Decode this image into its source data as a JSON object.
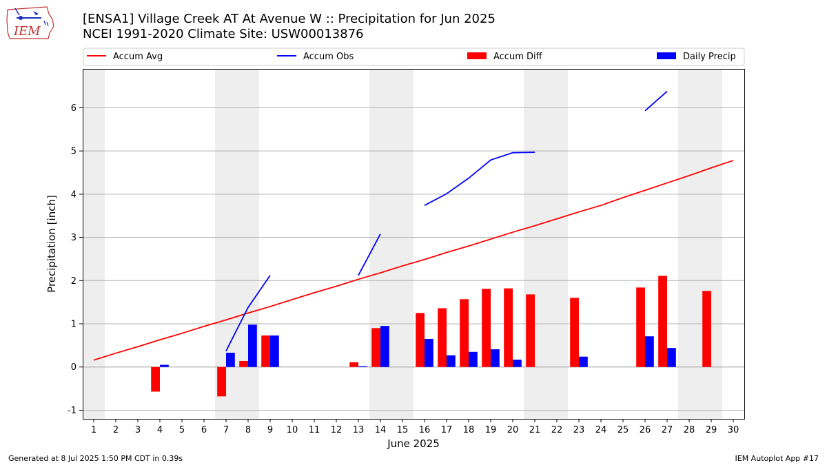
{
  "header": {
    "title": "[ENSA1] Village Creek  AT At Avenue W :: Precipitation for Jun 2025",
    "subtitle": "NCEI 1991-2020 Climate Site: USW00013876",
    "logo_text": "IEM"
  },
  "footer": {
    "left": "Generated at 8 Jul 2025 1:50 PM CDT in 0.39s",
    "right": "IEM Autoplot App #17"
  },
  "colors": {
    "avg": "#ff0000",
    "obs": "#0000ff",
    "diff": "#ff0000",
    "daily": "#0000ff",
    "weekend_band": "#eeeeee",
    "grid": "#b0b0b0"
  },
  "chart_data": {
    "type": "bar",
    "title": "[ENSA1] Village Creek  AT At Avenue W :: Precipitation for Jun 2025",
    "xlabel": "June 2025",
    "ylabel": "Precipitation [inch]",
    "xlim": [
      0.5,
      30.5
    ],
    "ylim": [
      -1.2,
      6.9
    ],
    "yticks": [
      -1,
      0,
      1,
      2,
      3,
      4,
      5,
      6
    ],
    "xticks": [
      "1",
      "2",
      "3",
      "4",
      "5",
      "6",
      "7",
      "8",
      "9",
      "10",
      "11",
      "12",
      "13",
      "14",
      "15",
      "16",
      "17",
      "18",
      "19",
      "20",
      "21",
      "22",
      "23",
      "24",
      "25",
      "26",
      "27",
      "28",
      "29",
      "30"
    ],
    "legend": [
      "Accum Avg",
      "Accum Obs",
      "Accum Diff",
      "Daily Precip"
    ],
    "weekend_bands": [
      [
        0.5,
        1.5
      ],
      [
        6.5,
        8.5
      ],
      [
        13.5,
        15.5
      ],
      [
        20.5,
        22.5
      ],
      [
        27.5,
        29.5
      ]
    ],
    "accum_avg": [
      0.16,
      0.32,
      0.47,
      0.63,
      0.78,
      0.94,
      1.09,
      1.25,
      1.4,
      1.56,
      1.72,
      1.87,
      2.03,
      2.18,
      2.34,
      2.49,
      2.65,
      2.8,
      2.96,
      3.12,
      3.27,
      3.43,
      3.59,
      3.74,
      3.92,
      4.09,
      4.26,
      4.43,
      4.61,
      4.78
    ],
    "accum_obs_segments": [
      {
        "x": [
          7,
          8,
          9
        ],
        "y": [
          0.37,
          1.38,
          2.12
        ]
      },
      {
        "x": [
          13,
          14
        ],
        "y": [
          2.12,
          3.08
        ]
      },
      {
        "x": [
          16,
          17,
          18,
          19,
          20,
          21
        ],
        "y": [
          3.74,
          4.01,
          4.37,
          4.79,
          4.96,
          4.97
        ]
      },
      {
        "x": [
          26,
          27
        ],
        "y": [
          5.93,
          6.38
        ]
      }
    ],
    "accum_diff": [
      {
        "day": 4,
        "value": -0.57
      },
      {
        "day": 7,
        "value": -0.68
      },
      {
        "day": 8,
        "value": 0.14
      },
      {
        "day": 9,
        "value": 0.73
      },
      {
        "day": 13,
        "value": 0.11
      },
      {
        "day": 14,
        "value": 0.9
      },
      {
        "day": 16,
        "value": 1.25
      },
      {
        "day": 17,
        "value": 1.36
      },
      {
        "day": 18,
        "value": 1.57
      },
      {
        "day": 19,
        "value": 1.81
      },
      {
        "day": 20,
        "value": 1.82
      },
      {
        "day": 21,
        "value": 1.68
      },
      {
        "day": 23,
        "value": 1.6
      },
      {
        "day": 26,
        "value": 1.84
      },
      {
        "day": 27,
        "value": 2.11
      },
      {
        "day": 29,
        "value": 1.76
      }
    ],
    "daily_precip": [
      {
        "day": 4,
        "value": 0.05
      },
      {
        "day": 7,
        "value": 0.33
      },
      {
        "day": 8,
        "value": 0.98
      },
      {
        "day": 9,
        "value": 0.73
      },
      {
        "day": 13,
        "value": 0.02
      },
      {
        "day": 14,
        "value": 0.95
      },
      {
        "day": 16,
        "value": 0.65
      },
      {
        "day": 17,
        "value": 0.27
      },
      {
        "day": 18,
        "value": 0.35
      },
      {
        "day": 19,
        "value": 0.41
      },
      {
        "day": 20,
        "value": 0.17
      },
      {
        "day": 23,
        "value": 0.24
      },
      {
        "day": 26,
        "value": 0.71
      },
      {
        "day": 27,
        "value": 0.44
      }
    ]
  }
}
